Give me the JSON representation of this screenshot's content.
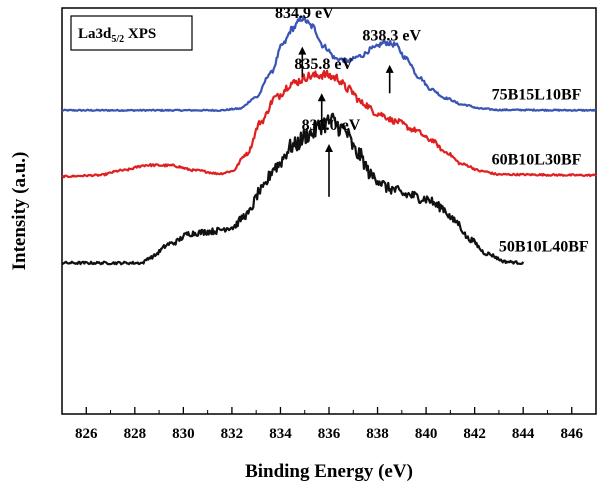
{
  "chart_data": {
    "type": "line",
    "title": "",
    "legend_box": {
      "text_main": "La3d",
      "text_sub": "5/2",
      "text_tail": " XPS",
      "placement": "top-left"
    },
    "xlabel": "Binding Energy (eV)",
    "ylabel": "Intensity (a.u.)",
    "xlim": [
      825,
      847
    ],
    "ylim": [
      0,
      1
    ],
    "x_ticks": [
      826,
      828,
      830,
      832,
      834,
      836,
      838,
      840,
      842,
      844,
      846
    ],
    "x_tick_labels": [
      "826",
      "828",
      "830",
      "832",
      "834",
      "836",
      "838",
      "840",
      "842",
      "844",
      "846"
    ],
    "y_ticks_shown": false,
    "grid": false,
    "series": [
      {
        "name": "75B15L10BF",
        "color": "#3a54b4",
        "noise": 0.004,
        "points": [
          [
            825,
            0.748
          ],
          [
            831.5,
            0.748
          ],
          [
            832.3,
            0.752
          ],
          [
            833.0,
            0.78
          ],
          [
            833.6,
            0.84
          ],
          [
            834.1,
            0.91
          ],
          [
            834.5,
            0.95
          ],
          [
            834.9,
            0.975
          ],
          [
            835.3,
            0.955
          ],
          [
            835.8,
            0.905
          ],
          [
            836.3,
            0.875
          ],
          [
            836.8,
            0.87
          ],
          [
            837.3,
            0.882
          ],
          [
            837.8,
            0.9
          ],
          [
            838.3,
            0.915
          ],
          [
            838.7,
            0.91
          ],
          [
            839.2,
            0.875
          ],
          [
            839.7,
            0.83
          ],
          [
            840.2,
            0.8
          ],
          [
            840.8,
            0.778
          ],
          [
            841.5,
            0.762
          ],
          [
            842.3,
            0.752
          ],
          [
            843.0,
            0.749
          ],
          [
            847,
            0.748
          ]
        ]
      },
      {
        "name": "60B10L30BF",
        "color": "#e02020",
        "noise": 0.005,
        "points": [
          [
            825,
            0.585
          ],
          [
            826.5,
            0.588
          ],
          [
            827.5,
            0.6
          ],
          [
            828.5,
            0.613
          ],
          [
            829.5,
            0.612
          ],
          [
            830.5,
            0.6
          ],
          [
            831.5,
            0.592
          ],
          [
            832.0,
            0.598
          ],
          [
            832.6,
            0.64
          ],
          [
            833.2,
            0.72
          ],
          [
            833.8,
            0.78
          ],
          [
            834.5,
            0.815
          ],
          [
            835.2,
            0.832
          ],
          [
            835.8,
            0.836
          ],
          [
            836.3,
            0.828
          ],
          [
            836.8,
            0.8
          ],
          [
            837.4,
            0.765
          ],
          [
            838.0,
            0.74
          ],
          [
            838.8,
            0.72
          ],
          [
            839.5,
            0.7
          ],
          [
            840.2,
            0.675
          ],
          [
            840.8,
            0.645
          ],
          [
            841.5,
            0.615
          ],
          [
            842.3,
            0.598
          ],
          [
            843.0,
            0.59
          ],
          [
            847,
            0.588
          ]
        ]
      },
      {
        "name": "50B10L40BF",
        "color": "#111111",
        "noise": 0.008,
        "start_x": 825,
        "points": [
          [
            825,
            0.372
          ],
          [
            828.3,
            0.372
          ],
          [
            828.6,
            0.385
          ],
          [
            829.5,
            0.42
          ],
          [
            830.3,
            0.445
          ],
          [
            831.2,
            0.45
          ],
          [
            832.0,
            0.46
          ],
          [
            832.6,
            0.49
          ],
          [
            833.2,
            0.55
          ],
          [
            833.8,
            0.61
          ],
          [
            834.5,
            0.66
          ],
          [
            835.2,
            0.69
          ],
          [
            835.8,
            0.715
          ],
          [
            836.1,
            0.722
          ],
          [
            836.6,
            0.7
          ],
          [
            837.2,
            0.64
          ],
          [
            837.8,
            0.585
          ],
          [
            838.5,
            0.555
          ],
          [
            839.2,
            0.54
          ],
          [
            840.0,
            0.53
          ],
          [
            840.6,
            0.51
          ],
          [
            841.2,
            0.475
          ],
          [
            841.8,
            0.43
          ],
          [
            842.5,
            0.395
          ],
          [
            843.3,
            0.375
          ],
          [
            844.0,
            0.372
          ]
        ]
      }
    ],
    "annotations": [
      {
        "text": "834.9 eV",
        "x": 834.9,
        "arrow_y_base": 0.83,
        "arrow_y_tip": 0.905,
        "label_y": 0.975
      },
      {
        "text": "838.3 eV",
        "x": 838.5,
        "arrow_y_base": 0.79,
        "arrow_y_tip": 0.86,
        "label_y": 0.92
      },
      {
        "text": "835.8 eV",
        "x": 835.7,
        "arrow_y_base": 0.715,
        "arrow_y_tip": 0.79,
        "label_y": 0.85
      },
      {
        "text": "836.0 eV",
        "x": 836.0,
        "arrow_y_base": 0.535,
        "arrow_y_tip": 0.665,
        "label_y": 0.7
      }
    ],
    "series_labels": [
      {
        "text": "75B15L10BF",
        "series": 0,
        "x": 842.7,
        "y": 0.775
      },
      {
        "text": "60B10L30BF",
        "series": 1,
        "x": 842.7,
        "y": 0.615
      },
      {
        "text": "50B10L40BF",
        "series": 2,
        "x": 843.0,
        "y": 0.4
      }
    ]
  }
}
